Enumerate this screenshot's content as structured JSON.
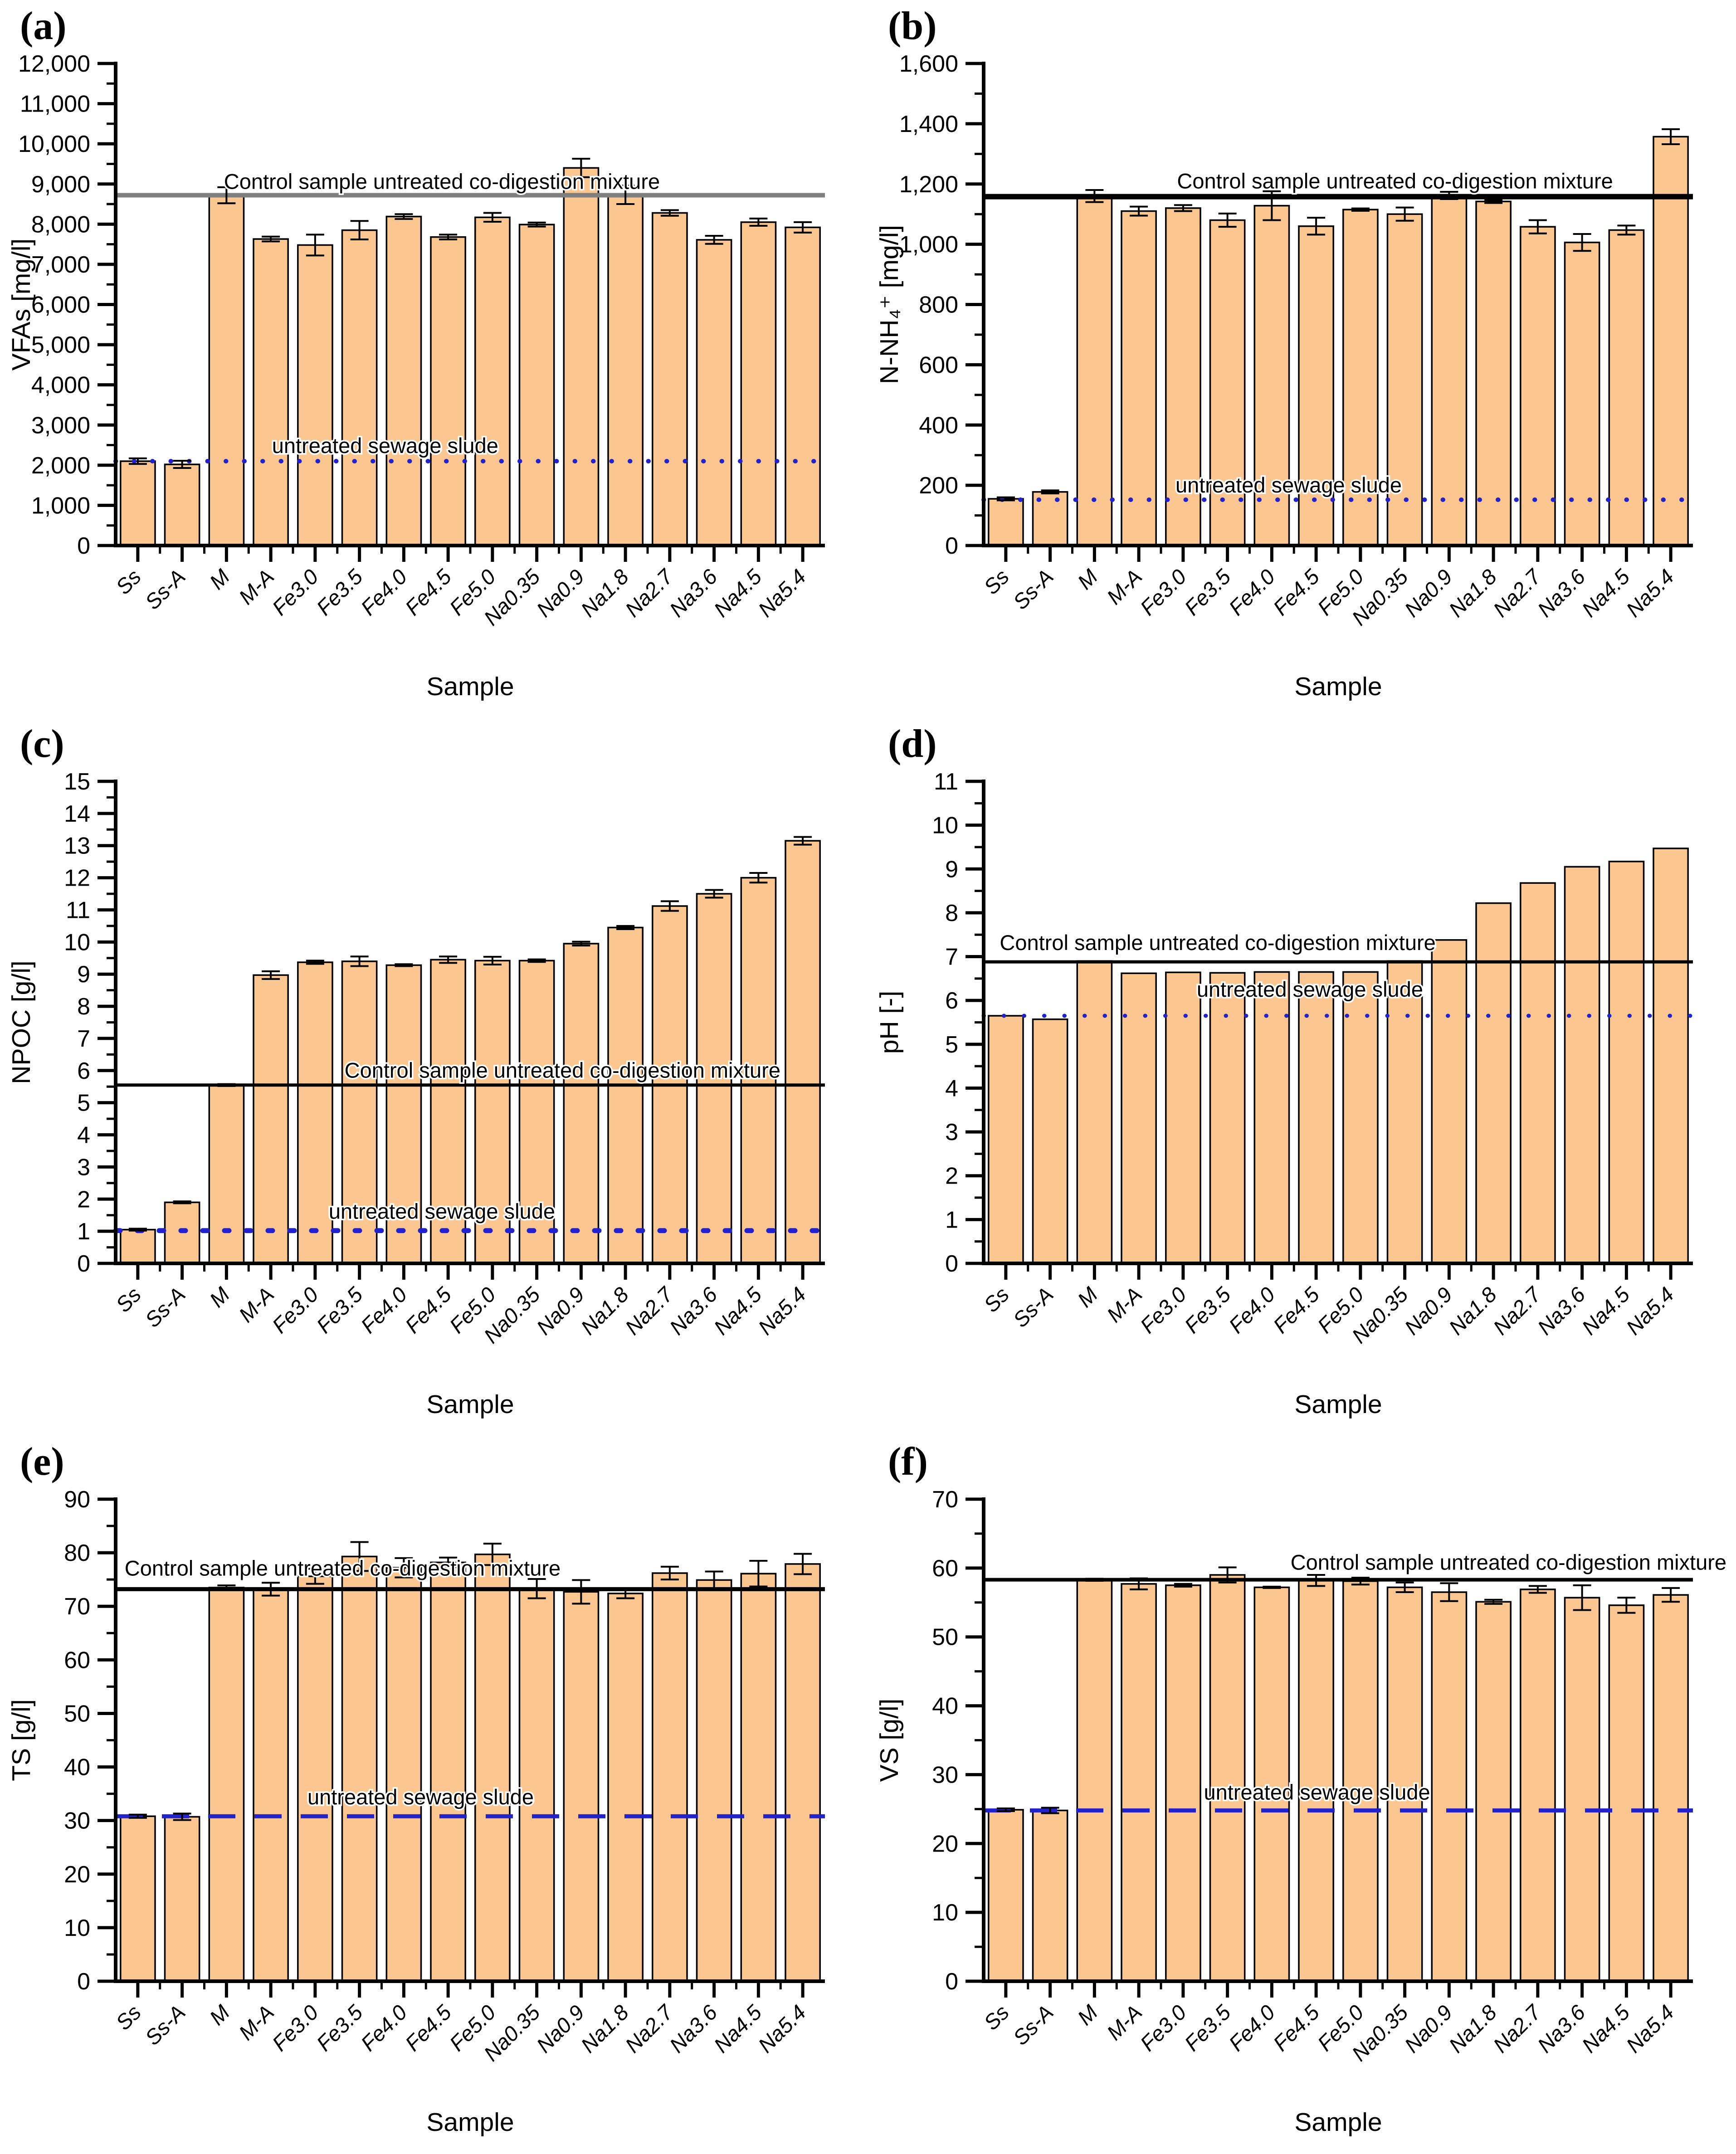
{
  "page": {
    "background": "#ffffff"
  },
  "categories": [
    "Ss",
    "Ss-A",
    "M",
    "M-A",
    "Fe3.0",
    "Fe3.5",
    "Fe4.0",
    "Fe4.5",
    "Fe5.0",
    "Na0.35",
    "Na0.9",
    "Na1.8",
    "Na2.7",
    "Na3.6",
    "Na4.5",
    "Na5.4"
  ],
  "colors": {
    "bar_fill": "#FBC68F",
    "bar_edge": "#000000",
    "reference_blue": "#2222CC",
    "control_gray": "#7F7F7F",
    "axis_black": "#000000"
  },
  "chart_data": [
    {
      "type": "bar",
      "panel_label": "(a)",
      "xlabel": "Sample",
      "ylabel": "VFAs [mg/l]",
      "ylim": [
        0,
        12000
      ],
      "yticks": {
        "values": [
          0,
          1000,
          2000,
          3000,
          4000,
          5000,
          6000,
          7000,
          8000,
          9000,
          10000,
          11000,
          12000
        ],
        "labels": [
          "0",
          "1,000",
          "2,000",
          "3,000",
          "4,000",
          "5,000",
          "6,000",
          "7,000",
          "8,000",
          "9,000",
          "10,000",
          "11,000",
          "12,000"
        ]
      },
      "y_minor_step": 500,
      "categories": [
        "Ss",
        "Ss-A",
        "M",
        "M-A",
        "Fe3.0",
        "Fe3.5",
        "Fe4.0",
        "Fe4.5",
        "Fe5.0",
        "Na0.35",
        "Na0.9",
        "Na1.8",
        "Na2.7",
        "Na3.6",
        "Na4.5",
        "Na5.4"
      ],
      "values": [
        2100,
        2020,
        8720,
        7630,
        7480,
        7850,
        8190,
        7680,
        8170,
        7990,
        9400,
        8730,
        8280,
        7610,
        8050,
        7920
      ],
      "errors": [
        70,
        90,
        200,
        60,
        260,
        230,
        60,
        60,
        110,
        50,
        230,
        230,
        70,
        100,
        90,
        130
      ],
      "bar_color": "#FBC68F",
      "bar_edge": "#000000",
      "control_line": {
        "value": 8720,
        "color": "#7F7F7F",
        "width": 10,
        "label": "Control sample untreated co-digestion mixture",
        "label_x": 0.46,
        "label_dy": -14
      },
      "sludge_line": {
        "value": 2100,
        "color": "#2222CC",
        "width": 10,
        "dash": "0.5 40",
        "cap": "round",
        "label": "untreated sewage slude",
        "label_x": 0.38,
        "label_dy": -18
      }
    },
    {
      "type": "bar",
      "panel_label": "(b)",
      "xlabel": "Sample",
      "ylabel": "N-NH₄⁺ [mg/l]",
      "ylim": [
        0,
        1600
      ],
      "yticks": {
        "values": [
          0,
          200,
          400,
          600,
          800,
          1000,
          1200,
          1400,
          1600
        ],
        "labels": [
          "0",
          "200",
          "400",
          "600",
          "800",
          "1,000",
          "1,200",
          "1,400",
          "1,600"
        ]
      },
      "y_minor_step": 100,
      "categories": [
        "Ss",
        "Ss-A",
        "M",
        "M-A",
        "Fe3.0",
        "Fe3.5",
        "Fe4.0",
        "Fe4.5",
        "Fe5.0",
        "Na0.35",
        "Na0.9",
        "Na1.8",
        "Na2.7",
        "Na3.6",
        "Na4.5",
        "Na5.4"
      ],
      "values": [
        155,
        178,
        1160,
        1110,
        1120,
        1080,
        1128,
        1060,
        1115,
        1100,
        1162,
        1142,
        1058,
        1006,
        1047,
        1357
      ],
      "errors": [
        5,
        5,
        20,
        15,
        10,
        22,
        48,
        28,
        4,
        22,
        12,
        5,
        22,
        28,
        15,
        25
      ],
      "bar_color": "#FBC68F",
      "bar_edge": "#000000",
      "control_line": {
        "value": 1158,
        "color": "#000000",
        "width": 12,
        "label": "Control sample untreated co-digestion mixture",
        "label_x": 0.58,
        "label_dy": -18
      },
      "sludge_line": {
        "value": 152,
        "color": "#2222CC",
        "width": 10,
        "dash": "0.5 40",
        "cap": "round",
        "label": "untreated sewage slude",
        "label_x": 0.43,
        "label_dy": -16
      }
    },
    {
      "type": "bar",
      "panel_label": "(c)",
      "xlabel": "Sample",
      "ylabel": "NPOC [g/l]",
      "ylim": [
        0,
        15
      ],
      "yticks": {
        "values": [
          0,
          1,
          2,
          3,
          4,
          5,
          6,
          7,
          8,
          9,
          10,
          11,
          12,
          13,
          14,
          15
        ],
        "labels": [
          "0",
          "1",
          "2",
          "3",
          "4",
          "5",
          "6",
          "7",
          "8",
          "9",
          "10",
          "11",
          "12",
          "13",
          "14",
          "15"
        ]
      },
      "y_minor_step": 0.5,
      "categories": [
        "Ss",
        "Ss-A",
        "M",
        "M-A",
        "Fe3.0",
        "Fe3.5",
        "Fe4.0",
        "Fe4.5",
        "Fe5.0",
        "Na0.35",
        "Na0.9",
        "Na1.8",
        "Na2.7",
        "Na3.6",
        "Na4.5",
        "Na5.4"
      ],
      "values": [
        1.05,
        1.9,
        5.55,
        8.97,
        9.37,
        9.4,
        9.28,
        9.45,
        9.42,
        9.42,
        9.95,
        10.45,
        11.12,
        11.5,
        12.0,
        13.15
      ],
      "errors": [
        0.03,
        0.03,
        0.03,
        0.12,
        0.05,
        0.15,
        0.03,
        0.1,
        0.12,
        0.04,
        0.06,
        0.05,
        0.15,
        0.12,
        0.15,
        0.12
      ],
      "bar_color": "#FBC68F",
      "bar_edge": "#000000",
      "control_line": {
        "value": 5.55,
        "color": "#000000",
        "width": 7,
        "label": "Control sample untreated co-digestion mixture",
        "label_x": 0.63,
        "label_dy": -16
      },
      "sludge_line": {
        "value": 1.02,
        "color": "#2222CC",
        "width": 11,
        "dash": "10 38",
        "cap": "round",
        "label": "untreated sewage slude",
        "label_x": 0.46,
        "label_dy": -26
      }
    },
    {
      "type": "bar",
      "panel_label": "(d)",
      "xlabel": "Sample",
      "ylabel": "pH [-]",
      "ylim": [
        0,
        11
      ],
      "yticks": {
        "values": [
          0,
          1,
          2,
          3,
          4,
          5,
          6,
          7,
          8,
          9,
          10,
          11
        ],
        "labels": [
          "0",
          "1",
          "2",
          "3",
          "4",
          "5",
          "6",
          "7",
          "8",
          "9",
          "10",
          "11"
        ]
      },
      "y_minor_step": 0.5,
      "categories": [
        "Ss",
        "Ss-A",
        "M",
        "M-A",
        "Fe3.0",
        "Fe3.5",
        "Fe4.0",
        "Fe4.5",
        "Fe5.0",
        "Na0.35",
        "Na0.9",
        "Na1.8",
        "Na2.7",
        "Na3.6",
        "Na4.5",
        "Na5.4"
      ],
      "values": [
        5.65,
        5.57,
        6.9,
        6.62,
        6.64,
        6.63,
        6.65,
        6.65,
        6.65,
        6.9,
        7.38,
        8.22,
        8.68,
        9.05,
        9.17,
        9.47
      ],
      "errors": [
        0,
        0,
        0,
        0,
        0,
        0,
        0,
        0,
        0,
        0,
        0,
        0,
        0,
        0,
        0,
        0
      ],
      "bar_color": "#FBC68F",
      "bar_edge": "#000000",
      "control_line": {
        "value": 6.88,
        "color": "#000000",
        "width": 7,
        "label": "Control sample untreated co-digestion mixture",
        "label_x": 0.33,
        "label_dy": -26
      },
      "sludge_line": {
        "value": 5.65,
        "color": "#2222CC",
        "width": 9,
        "dash": "0.5 44",
        "cap": "round",
        "label": "untreated sewage slude",
        "label_x": 0.46,
        "label_dy": -42
      }
    },
    {
      "type": "bar",
      "panel_label": "(e)",
      "xlabel": "Sample",
      "ylabel": "TS [g/l]",
      "ylim": [
        0,
        90
      ],
      "yticks": {
        "values": [
          0,
          10,
          20,
          30,
          40,
          50,
          60,
          70,
          80,
          90
        ],
        "labels": [
          "0",
          "10",
          "20",
          "30",
          "40",
          "50",
          "60",
          "70",
          "80",
          "90"
        ]
      },
      "y_minor_step": 5,
      "categories": [
        "Ss",
        "Ss-A",
        "M",
        "M-A",
        "Fe3.0",
        "Fe3.5",
        "Fe4.0",
        "Fe4.5",
        "Fe5.0",
        "Na0.35",
        "Na0.9",
        "Na1.8",
        "Na2.7",
        "Na3.6",
        "Na4.5",
        "Na5.4"
      ],
      "values": [
        30.8,
        30.7,
        73.5,
        73.2,
        75.6,
        79.3,
        77.2,
        78.2,
        79.7,
        73.3,
        72.7,
        72.4,
        76.2,
        74.9,
        76.1,
        77.9
      ],
      "errors": [
        0.3,
        0.6,
        0.4,
        1.2,
        1.4,
        2.7,
        1.8,
        0.9,
        2.0,
        1.8,
        2.2,
        0.9,
        1.2,
        1.6,
        2.4,
        1.9
      ],
      "bar_color": "#FBC68F",
      "bar_edge": "#000000",
      "control_line": {
        "value": 73.2,
        "color": "#000000",
        "width": 9,
        "label": "Control sample untreated co-digestion mixture",
        "label_x": 0.32,
        "label_dy": -30
      },
      "sludge_line": {
        "value": 30.8,
        "color": "#2222CC",
        "width": 9,
        "dash": "60 42",
        "cap": "butt",
        "label": "untreated sewage slude",
        "label_x": 0.43,
        "label_dy": -26
      }
    },
    {
      "type": "bar",
      "panel_label": "(f)",
      "xlabel": "Sample",
      "ylabel": "VS [g/l]",
      "ylim": [
        0,
        70
      ],
      "yticks": {
        "values": [
          0,
          10,
          20,
          30,
          40,
          50,
          60,
          70
        ],
        "labels": [
          "0",
          "10",
          "20",
          "30",
          "40",
          "50",
          "60",
          "70"
        ]
      },
      "y_minor_step": 5,
      "categories": [
        "Ss",
        "Ss-A",
        "M",
        "M-A",
        "Fe3.0",
        "Fe3.5",
        "Fe4.0",
        "Fe4.5",
        "Fe5.0",
        "Na0.35",
        "Na0.9",
        "Na1.8",
        "Na2.7",
        "Na3.6",
        "Na4.5",
        "Na5.4"
      ],
      "values": [
        24.9,
        24.8,
        58.3,
        57.7,
        57.5,
        59.0,
        57.2,
        58.2,
        58.1,
        57.2,
        56.5,
        55.1,
        56.9,
        55.7,
        54.6,
        56.1
      ],
      "errors": [
        0.2,
        0.4,
        0.15,
        0.8,
        0.2,
        1.1,
        0.1,
        0.8,
        0.5,
        0.7,
        1.3,
        0.3,
        0.5,
        1.8,
        1.1,
        1.0
      ],
      "bar_color": "#FBC68F",
      "bar_edge": "#000000",
      "control_line": {
        "value": 58.3,
        "color": "#000000",
        "width": 8,
        "label": "Control sample untreated co-digestion mixture",
        "label_x": 0.74,
        "label_dy": -22
      },
      "sludge_line": {
        "value": 24.8,
        "color": "#2222CC",
        "width": 9,
        "dash": "60 42",
        "cap": "butt",
        "label": "untreated sewage slude",
        "label_x": 0.47,
        "label_dy": -24
      }
    }
  ]
}
